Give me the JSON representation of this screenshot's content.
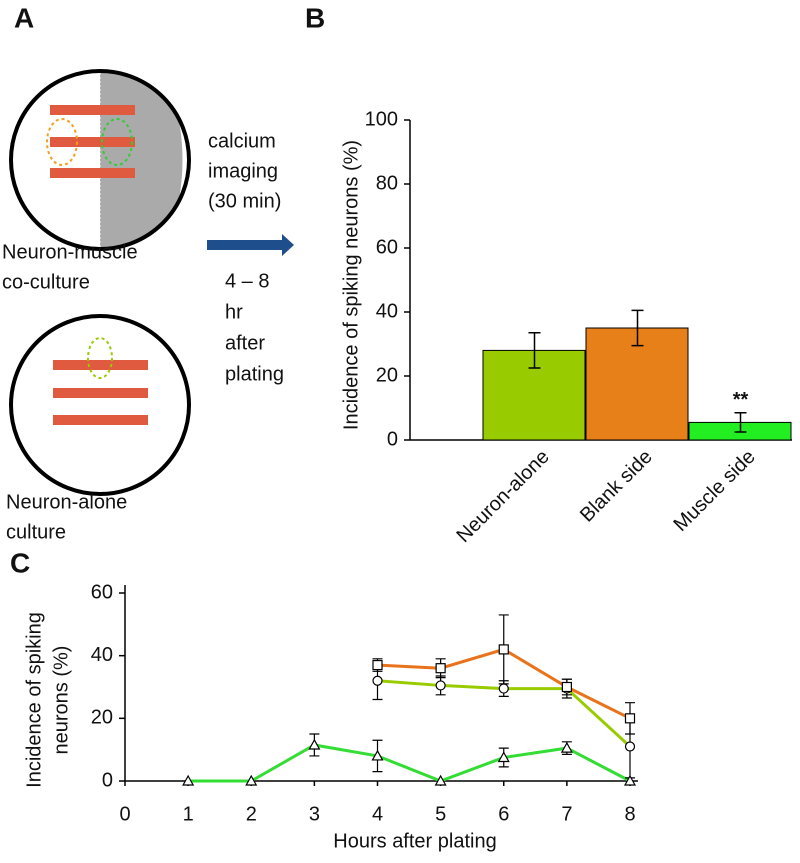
{
  "panels": [
    "A",
    "B",
    "C"
  ],
  "diagram": {
    "step": [
      "calcium",
      "imaging",
      "(30 min)"
    ],
    "time": [
      "4 – 8",
      "hr",
      "after",
      "plating"
    ],
    "coculture": [
      "Neuron-muscle",
      "co-culture"
    ],
    "alone": [
      "Neuron-alone",
      "culture"
    ]
  },
  "chart_data": [
    {
      "type": "bar",
      "ylabel": "Incidence of spiking neurons (%)",
      "categories": [
        "Neuron-alone",
        "Blank side",
        "Muscle side"
      ],
      "values": [
        28,
        35,
        5.5
      ],
      "errors": [
        5.5,
        5.5,
        3
      ],
      "value_annotations": [
        null,
        null,
        "**"
      ],
      "colors": [
        "#99cc00",
        "#e8801a",
        "#22ee22"
      ],
      "ylim": [
        0,
        100
      ],
      "yticks": [
        0,
        20,
        40,
        60,
        80,
        100
      ]
    },
    {
      "type": "line",
      "xlabel": "Hours after plating",
      "ylabel": [
        "Incidence of spiking",
        "neurons (%)"
      ],
      "x": [
        1,
        2,
        3,
        4,
        5,
        6,
        7,
        8
      ],
      "series": [
        {
          "color": "#33dd33",
          "marker": "triangle",
          "values": [
            0,
            0,
            11.5,
            8,
            0,
            7.5,
            10.5,
            0
          ],
          "errors": [
            0,
            0,
            3.5,
            5,
            0,
            3,
            2,
            0
          ]
        },
        {
          "color": "#99cc00",
          "marker": "circle",
          "values": [
            null,
            null,
            null,
            32,
            30.5,
            29.5,
            29.5,
            11
          ],
          "errors": [
            null,
            null,
            null,
            6,
            3,
            2.5,
            3,
            10
          ]
        },
        {
          "color": "#e8731a",
          "marker": "square",
          "values": [
            null,
            null,
            null,
            37,
            36,
            42,
            30,
            20
          ],
          "errors": [
            null,
            null,
            null,
            2,
            3,
            11,
            2.5,
            5
          ]
        }
      ],
      "xlim": [
        0,
        8
      ],
      "xticks": [
        0,
        1,
        2,
        3,
        4,
        5,
        6,
        7,
        8
      ],
      "ylim": [
        0,
        60
      ],
      "yticks": [
        0,
        20,
        40,
        60
      ]
    }
  ]
}
